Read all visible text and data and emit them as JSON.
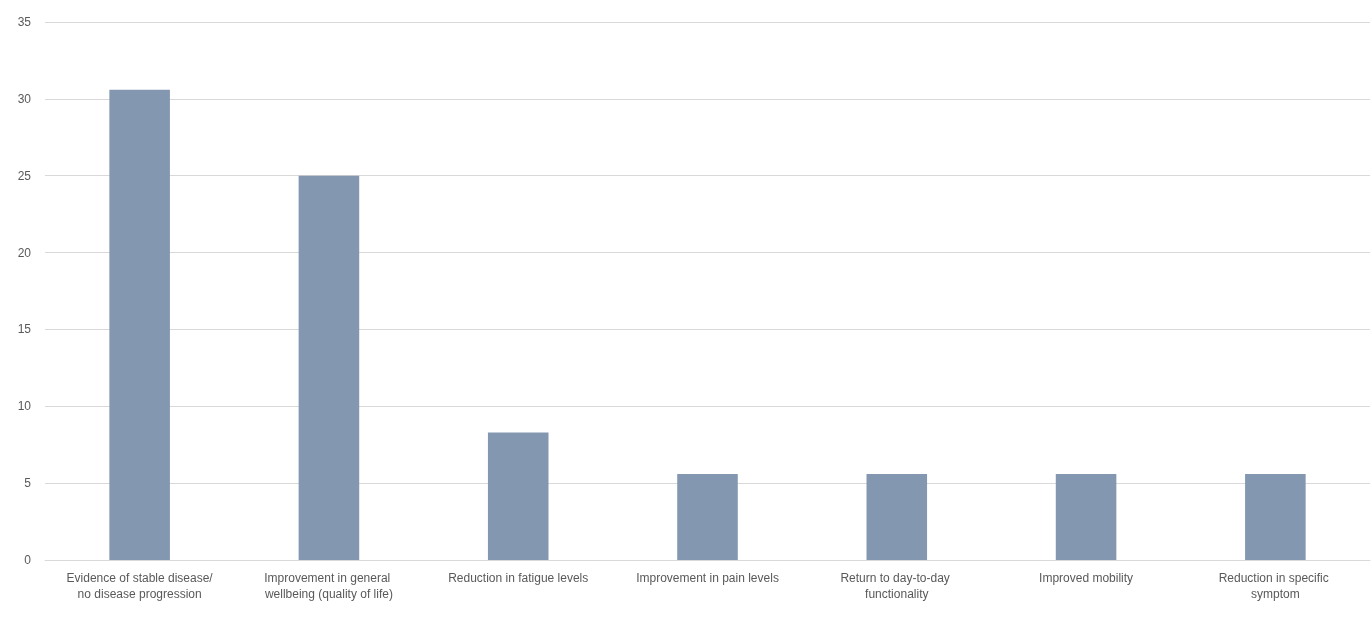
{
  "chart_data": {
    "type": "bar",
    "categories": [
      "Evidence of stable disease/no disease progression",
      "Improvement in general wellbeing (quality of life)",
      "Reduction in fatigue levels",
      "Improvement in pain levels",
      "Return to day-to-day functionality",
      "Improved mobility",
      "Reduction in specific symptom"
    ],
    "values": [
      30.6,
      25,
      8.3,
      5.6,
      5.6,
      5.6,
      5.6
    ],
    "color": "#8497b0",
    "ylim": [
      0,
      35
    ],
    "yticks": [
      0,
      5,
      10,
      15,
      20,
      25,
      30,
      35
    ],
    "grid": "y"
  }
}
